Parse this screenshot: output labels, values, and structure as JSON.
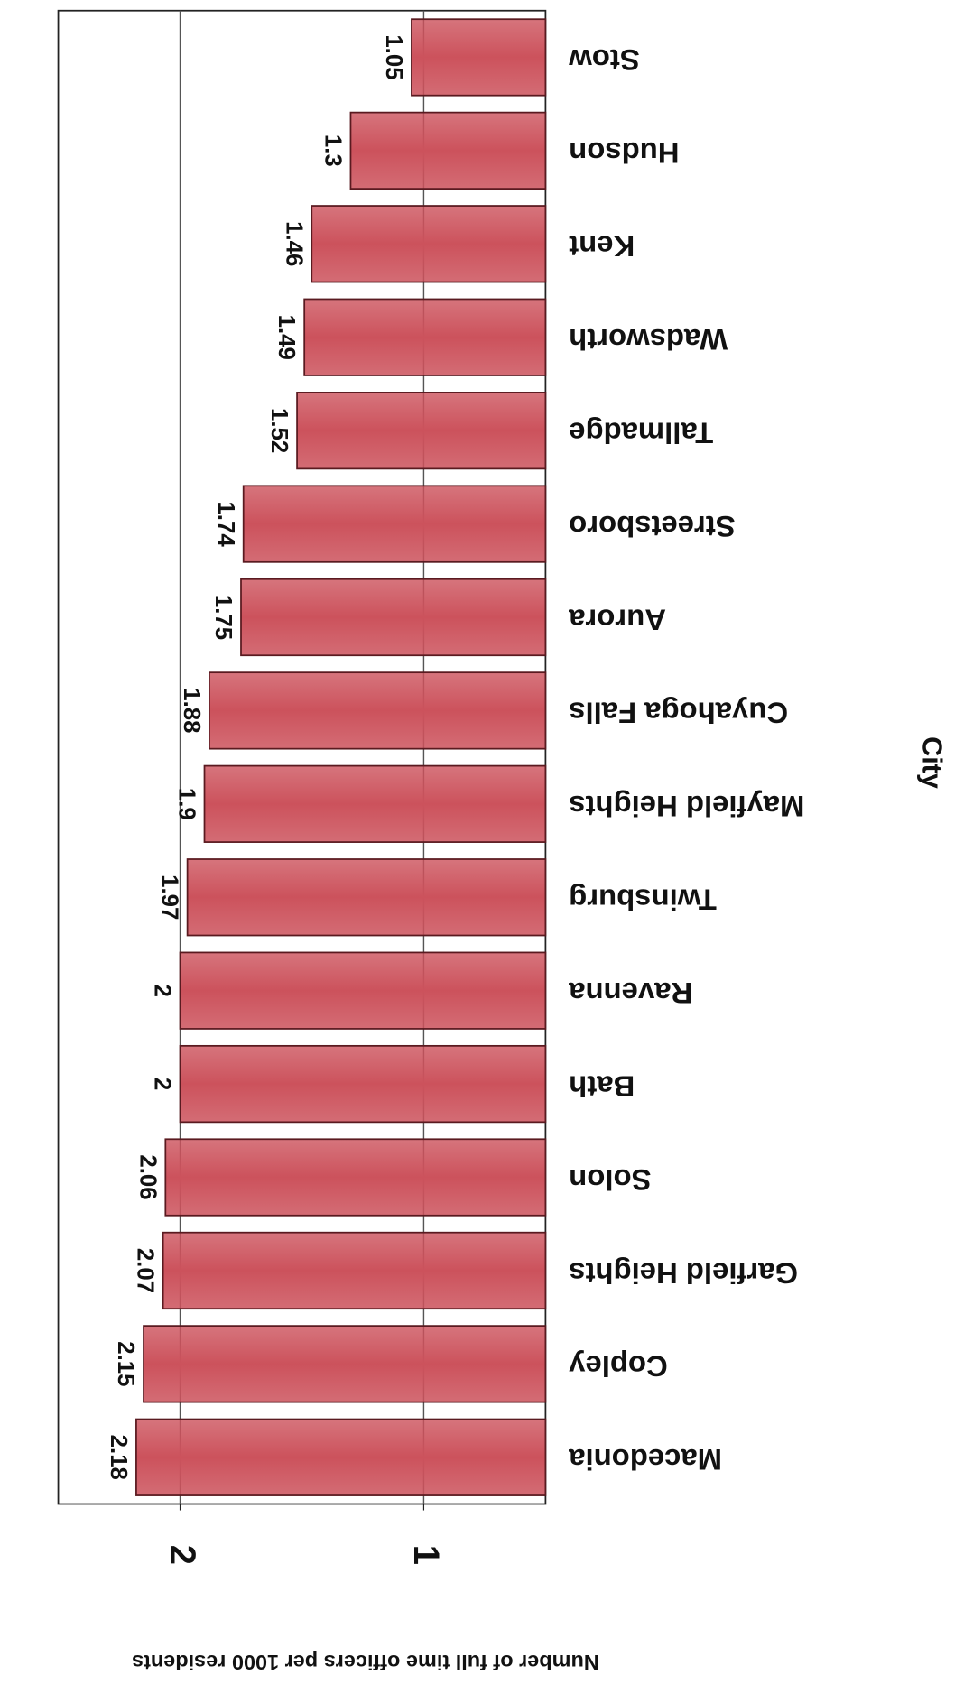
{
  "chart_data": {
    "type": "bar",
    "orientation": "horizontal",
    "x_axis_label": "City",
    "y_axis_label": "Number of full time officers per 1000 residents",
    "categories": [
      "Macedonia",
      "Copley",
      "Garfield Heights",
      "Solon",
      "Bath",
      "Ravenna",
      "Twinsburg",
      "Mayfield Heights",
      "Cuyahoga Falls",
      "Aurora",
      "Streetsboro",
      "Tallmadge",
      "Wadsworth",
      "Kent",
      "Hudson",
      "Stow"
    ],
    "values": [
      2.18,
      2.15,
      2.07,
      2.06,
      2,
      2,
      1.97,
      1.9,
      1.88,
      1.75,
      1.74,
      1.52,
      1.49,
      1.46,
      1.3,
      1.05
    ],
    "color": "#cc525c",
    "ylim": [
      0.5,
      2.5
    ],
    "yticks": [
      1,
      2
    ],
    "grid": true,
    "rotation": 180
  }
}
